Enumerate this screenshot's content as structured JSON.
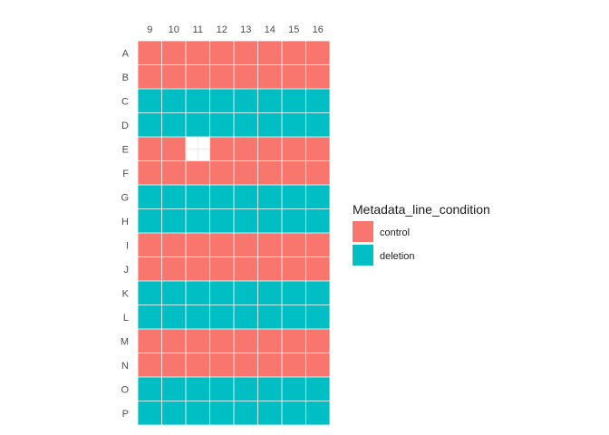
{
  "chart_data": {
    "type": "heatmap",
    "x": [
      "9",
      "10",
      "11",
      "12",
      "13",
      "14",
      "15",
      "16"
    ],
    "y": [
      "A",
      "B",
      "C",
      "D",
      "E",
      "F",
      "G",
      "H",
      "I",
      "J",
      "K",
      "L",
      "M",
      "N",
      "O",
      "P"
    ],
    "xlabel": "",
    "ylabel": "",
    "x_axis_position": "top",
    "grid": true,
    "legend": {
      "title": "Metadata_line_condition",
      "position": "right",
      "entries": [
        {
          "label": "control",
          "color": "#F8766D"
        },
        {
          "label": "deletion",
          "color": "#00BFC4"
        }
      ]
    },
    "row_condition": {
      "A": "control",
      "B": "control",
      "C": "deletion",
      "D": "deletion",
      "E": "control",
      "F": "control",
      "G": "deletion",
      "H": "deletion",
      "I": "control",
      "J": "control",
      "K": "deletion",
      "L": "deletion",
      "M": "control",
      "N": "control",
      "O": "deletion",
      "P": "deletion"
    },
    "missing_cells": [
      {
        "row": "E",
        "col": "11"
      }
    ]
  }
}
